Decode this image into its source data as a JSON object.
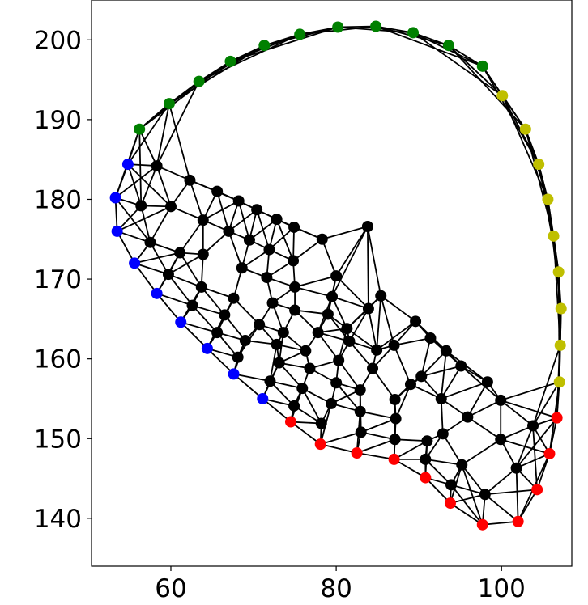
{
  "chart_data": {
    "type": "scatter",
    "title": "",
    "xlabel": "",
    "ylabel": "",
    "xlim": [
      50.4,
      108.5
    ],
    "ylim": [
      134,
      205
    ],
    "x_ticks": [
      60,
      80,
      100
    ],
    "y_ticks": [
      140,
      150,
      160,
      170,
      180,
      190,
      200
    ],
    "x_tick_labels": [
      "60",
      "80",
      "100"
    ],
    "y_tick_labels": [
      "140",
      "150",
      "160",
      "170",
      "180",
      "190",
      "200"
    ],
    "grid": false,
    "legend": "none",
    "edge_color": "#000000",
    "series": [
      {
        "color": "#008000",
        "points": [
          [
            56.2,
            188.8
          ],
          [
            59.8,
            192.0
          ],
          [
            63.4,
            194.8
          ],
          [
            67.2,
            197.3
          ],
          [
            71.3,
            199.3
          ],
          [
            75.6,
            200.7
          ],
          [
            80.2,
            201.6
          ],
          [
            84.8,
            201.7
          ],
          [
            89.3,
            200.9
          ],
          [
            93.6,
            199.3
          ],
          [
            97.7,
            196.7
          ]
        ]
      },
      {
        "color": "#bfbf00",
        "points": [
          [
            100.1,
            193.0
          ],
          [
            102.9,
            188.8
          ],
          [
            104.5,
            184.4
          ],
          [
            105.6,
            180.0
          ],
          [
            106.3,
            175.4
          ],
          [
            106.9,
            170.9
          ],
          [
            107.2,
            166.3
          ],
          [
            107.1,
            161.7
          ],
          [
            107.0,
            157.1
          ]
        ]
      },
      {
        "color": "#ff0000",
        "points": [
          [
            106.7,
            152.6
          ],
          [
            105.8,
            148.1
          ],
          [
            104.3,
            143.6
          ],
          [
            102.0,
            139.6
          ],
          [
            97.7,
            139.2
          ],
          [
            93.8,
            141.9
          ],
          [
            90.8,
            145.1
          ],
          [
            87.0,
            147.4
          ],
          [
            82.5,
            148.2
          ],
          [
            78.1,
            149.3
          ],
          [
            74.5,
            152.1
          ]
        ]
      },
      {
        "color": "#0000ff",
        "points": [
          [
            71.1,
            155.0
          ],
          [
            67.6,
            158.1
          ],
          [
            64.4,
            161.3
          ],
          [
            61.2,
            164.6
          ],
          [
            58.3,
            168.2
          ],
          [
            55.6,
            172.0
          ],
          [
            53.5,
            176.0
          ],
          [
            53.3,
            180.2
          ],
          [
            54.8,
            184.4
          ]
        ]
      },
      {
        "color": "#000000",
        "points": [
          [
            58.3,
            184.2
          ],
          [
            62.3,
            182.4
          ],
          [
            65.6,
            181.0
          ],
          [
            60.0,
            179.1
          ],
          [
            56.4,
            179.2
          ],
          [
            68.2,
            179.8
          ],
          [
            70.4,
            178.7
          ],
          [
            72.8,
            177.5
          ],
          [
            63.9,
            177.4
          ],
          [
            57.5,
            174.6
          ],
          [
            67.0,
            176.0
          ],
          [
            74.9,
            176.5
          ],
          [
            78.3,
            175.0
          ],
          [
            83.8,
            176.6
          ],
          [
            69.5,
            174.9
          ],
          [
            61.1,
            173.3
          ],
          [
            63.9,
            173.1
          ],
          [
            71.9,
            173.7
          ],
          [
            74.8,
            172.3
          ],
          [
            59.7,
            170.6
          ],
          [
            68.6,
            171.4
          ],
          [
            71.6,
            170.2
          ],
          [
            63.7,
            169.0
          ],
          [
            80.0,
            170.4
          ],
          [
            75.0,
            169.0
          ],
          [
            67.6,
            167.6
          ],
          [
            62.6,
            166.7
          ],
          [
            72.3,
            167.0
          ],
          [
            79.5,
            167.8
          ],
          [
            85.4,
            167.9
          ],
          [
            66.5,
            165.5
          ],
          [
            75.0,
            166.1
          ],
          [
            79.0,
            165.6
          ],
          [
            83.9,
            166.3
          ],
          [
            70.7,
            164.3
          ],
          [
            89.6,
            164.7
          ],
          [
            65.6,
            163.3
          ],
          [
            73.6,
            163.3
          ],
          [
            77.8,
            163.3
          ],
          [
            81.3,
            163.8
          ],
          [
            69.0,
            162.3
          ],
          [
            72.8,
            161.8
          ],
          [
            81.6,
            162.2
          ],
          [
            84.9,
            161.1
          ],
          [
            87.0,
            161.7
          ],
          [
            91.4,
            162.6
          ],
          [
            76.3,
            161.0
          ],
          [
            93.3,
            161.0
          ],
          [
            68.1,
            160.2
          ],
          [
            73.1,
            159.5
          ],
          [
            80.3,
            159.8
          ],
          [
            76.8,
            158.8
          ],
          [
            84.4,
            158.8
          ],
          [
            95.1,
            159.1
          ],
          [
            90.3,
            157.8
          ],
          [
            72.0,
            157.2
          ],
          [
            80.0,
            157.0
          ],
          [
            82.9,
            156.1
          ],
          [
            89.0,
            156.8
          ],
          [
            98.3,
            157.1
          ],
          [
            75.9,
            156.3
          ],
          [
            79.4,
            154.4
          ],
          [
            87.1,
            154.9
          ],
          [
            92.7,
            155.0
          ],
          [
            74.9,
            154.1
          ],
          [
            82.9,
            153.4
          ],
          [
            95.9,
            152.7
          ],
          [
            99.9,
            154.8
          ],
          [
            87.2,
            152.5
          ],
          [
            78.2,
            151.9
          ],
          [
            83.0,
            150.8
          ],
          [
            92.9,
            150.6
          ],
          [
            103.8,
            151.6
          ],
          [
            87.1,
            149.9
          ],
          [
            91.0,
            149.7
          ],
          [
            99.9,
            149.9
          ],
          [
            90.8,
            147.4
          ],
          [
            95.2,
            146.7
          ],
          [
            101.8,
            146.3
          ],
          [
            93.9,
            144.2
          ],
          [
            98.0,
            143.0
          ]
        ]
      }
    ]
  }
}
